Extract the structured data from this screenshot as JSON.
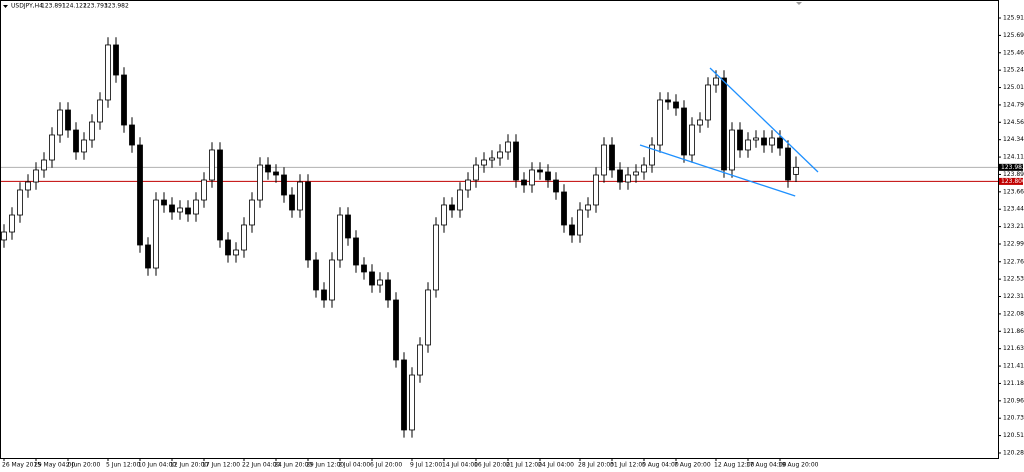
{
  "chart_data": {
    "type": "candlestick",
    "symbol": "USDJPY,H4",
    "open": [
      123.042,
      123.145,
      123.365,
      123.689,
      123.792,
      123.948,
      124.077,
      124.401,
      124.724,
      124.465,
      124.181,
      124.336,
      124.569,
      124.854,
      125.566,
      125.177,
      124.53,
      124.271,
      122.977,
      122.679,
      123.559,
      123.495,
      123.404,
      123.456,
      123.378,
      123.559,
      123.818,
      124.207,
      123.042,
      122.848,
      122.912,
      123.236,
      123.559,
      124.012,
      123.922,
      123.883,
      123.624,
      123.43,
      123.792,
      122.783,
      122.395,
      122.265,
      122.783,
      123.365,
      123.068,
      122.718,
      122.628,
      122.459,
      122.524,
      122.265,
      121.489,
      120.583,
      121.294,
      121.683,
      122.395,
      123.236,
      123.495,
      123.43,
      123.689,
      123.818,
      124.012,
      124.077,
      124.103,
      124.181,
      124.31,
      123.818,
      123.754,
      123.948,
      123.922,
      123.818,
      123.663,
      123.236,
      123.106,
      123.43,
      123.495,
      123.883,
      124.271,
      123.948,
      123.792,
      123.883,
      123.922,
      124.012,
      124.271,
      124.854,
      124.828,
      124.75,
      124.142,
      124.53,
      124.595,
      125.048,
      125.138,
      123.948,
      124.465,
      124.207,
      124.336,
      124.362,
      124.271,
      124.362,
      124.232,
      123.891
    ],
    "high": [
      123.245,
      123.465,
      123.789,
      123.892,
      124.048,
      124.177,
      124.501,
      124.824,
      124.824,
      124.565,
      124.436,
      124.669,
      124.954,
      125.666,
      125.666,
      125.277,
      124.63,
      124.371,
      123.077,
      123.659,
      123.659,
      123.595,
      123.556,
      123.556,
      123.659,
      123.918,
      124.307,
      124.307,
      123.142,
      123.012,
      123.336,
      123.659,
      124.112,
      124.112,
      124.022,
      123.983,
      123.724,
      123.892,
      123.892,
      122.883,
      122.495,
      122.883,
      123.465,
      123.465,
      123.168,
      122.818,
      122.728,
      122.624,
      122.624,
      122.365,
      121.589,
      121.394,
      121.783,
      122.495,
      123.336,
      123.595,
      123.595,
      123.789,
      123.918,
      124.112,
      124.177,
      124.203,
      124.281,
      124.41,
      124.41,
      123.918,
      124.048,
      124.048,
      124.022,
      123.918,
      123.763,
      123.336,
      123.53,
      123.595,
      123.983,
      124.371,
      124.371,
      124.048,
      123.983,
      124.022,
      124.112,
      124.371,
      124.954,
      124.954,
      124.928,
      124.85,
      124.63,
      124.695,
      125.148,
      125.238,
      125.238,
      124.565,
      124.565,
      124.436,
      124.462,
      124.462,
      124.462,
      124.462,
      124.332,
      124.122
    ],
    "low": [
      122.942,
      123.045,
      123.265,
      123.589,
      123.692,
      123.848,
      123.977,
      124.301,
      124.365,
      124.081,
      124.081,
      124.236,
      124.469,
      124.754,
      125.077,
      124.43,
      124.171,
      122.877,
      122.579,
      122.579,
      123.395,
      123.304,
      123.304,
      123.278,
      123.278,
      123.459,
      123.718,
      122.942,
      122.748,
      122.748,
      122.812,
      123.136,
      123.459,
      123.822,
      123.783,
      123.524,
      123.33,
      123.33,
      122.683,
      122.295,
      122.165,
      122.165,
      122.683,
      122.968,
      122.618,
      122.528,
      122.359,
      122.359,
      122.165,
      121.389,
      120.483,
      120.483,
      121.194,
      121.583,
      122.295,
      123.136,
      123.33,
      123.33,
      123.589,
      123.718,
      123.912,
      123.977,
      124.003,
      124.081,
      123.718,
      123.654,
      123.654,
      123.822,
      123.718,
      123.563,
      123.136,
      123.006,
      123.006,
      123.33,
      123.395,
      123.783,
      123.848,
      123.692,
      123.692,
      123.783,
      123.822,
      123.912,
      124.171,
      124.728,
      124.65,
      124.042,
      124.042,
      124.43,
      124.495,
      124.948,
      123.848,
      123.848,
      124.107,
      124.107,
      124.236,
      124.171,
      124.171,
      124.132,
      123.718,
      123.793
    ],
    "close": [
      123.145,
      123.365,
      123.689,
      123.792,
      123.948,
      124.077,
      124.401,
      124.724,
      124.465,
      124.181,
      124.336,
      124.569,
      124.854,
      125.566,
      125.177,
      124.53,
      124.271,
      122.977,
      122.679,
      123.559,
      123.495,
      123.404,
      123.456,
      123.378,
      123.559,
      123.818,
      124.207,
      123.042,
      122.848,
      122.912,
      123.236,
      123.559,
      124.012,
      123.922,
      123.883,
      123.624,
      123.43,
      123.792,
      122.783,
      122.395,
      122.265,
      122.783,
      123.365,
      123.068,
      122.718,
      122.628,
      122.459,
      122.524,
      122.265,
      121.489,
      120.583,
      121.294,
      121.683,
      122.395,
      123.236,
      123.495,
      123.43,
      123.689,
      123.818,
      124.012,
      124.077,
      124.103,
      124.181,
      124.31,
      123.818,
      123.754,
      123.948,
      123.922,
      123.818,
      123.663,
      123.236,
      123.106,
      123.43,
      123.495,
      123.883,
      124.271,
      123.948,
      123.792,
      123.883,
      123.922,
      124.012,
      124.271,
      124.854,
      124.828,
      124.75,
      124.142,
      124.53,
      124.595,
      125.048,
      125.138,
      123.948,
      124.465,
      124.207,
      124.336,
      124.362,
      124.271,
      124.362,
      124.232,
      123.818,
      123.982
    ],
    "ylim": [
      120.22,
      126.148
    ],
    "yticks": [
      125.915,
      {
        "value": 125.69,
        "label": "125.690"
      },
      125.465,
      {
        "value": 125.24,
        "label": "125.240"
      },
      125.015,
      {
        "value": 124.79,
        "label": "124.790"
      },
      124.565,
      {
        "value": 124.34,
        "label": "124.340"
      },
      124.115,
      {
        "value": 123.89,
        "label": "123.890"
      },
      123.665,
      {
        "value": 123.44,
        "label": "123.440"
      },
      123.215,
      {
        "value": 122.99,
        "label": "122.990"
      },
      {
        "value": 122.76,
        "label": "122.760"
      },
      122.535,
      {
        "value": 122.31,
        "label": "122.310"
      },
      122.085,
      {
        "value": 121.86,
        "label": "121.860"
      },
      121.635,
      {
        "value": 121.41,
        "label": "121.410"
      },
      121.185,
      {
        "value": 120.96,
        "label": "120.960"
      },
      120.735,
      {
        "value": 120.51,
        "label": "120.510"
      },
      120.285
    ],
    "xticks": [
      {
        "value": 0,
        "label": "26 May 2015"
      },
      {
        "value": 4,
        "label": "29 May 04:00"
      },
      {
        "value": 8,
        "label": "2 Jun 20:00"
      },
      {
        "value": 13,
        "label": "5 Jun 12:00"
      },
      {
        "value": 17,
        "label": "10 Jun 04:00"
      },
      {
        "value": 21,
        "label": "12 Jun 20:00"
      },
      {
        "value": 25,
        "label": "17 Jun 12:00"
      },
      {
        "value": 30,
        "label": "22 Jun 04:00"
      },
      {
        "value": 34,
        "label": "24 Jun 20:00"
      },
      {
        "value": 38,
        "label": "29 Jun 12:00"
      },
      {
        "value": 42,
        "label": "2 Jul 04:00"
      },
      {
        "value": 46,
        "label": "6 Jul 20:00"
      },
      {
        "value": 51,
        "label": "9 Jul 12:00"
      },
      {
        "value": 55,
        "label": "14 Jul 04:00"
      },
      {
        "value": 59,
        "label": "16 Jul 20:00"
      },
      {
        "value": 63,
        "label": "21 Jul 12:00"
      },
      {
        "value": 67,
        "label": "24 Jul 04:00"
      },
      {
        "value": 72,
        "label": "28 Jul 20:00"
      },
      {
        "value": 76,
        "label": "31 Jul 12:00"
      },
      {
        "value": 80,
        "label": "5 Aug 04:00"
      },
      {
        "value": 84,
        "label": "7 Aug 20:00"
      },
      {
        "value": 89,
        "label": "12 Aug 12:00"
      },
      {
        "value": 93,
        "label": "17 Aug 04:00"
      },
      {
        "value": 97,
        "label": "19 Aug 20:00"
      }
    ],
    "trendlines": [
      {
        "color": "#1e90ff",
        "x": [
          88.25,
          101.75
        ],
        "y": [
          125.268,
          123.922
        ]
      },
      {
        "color": "#1e90ff",
        "x": [
          79.5,
          98.9
        ],
        "y": [
          124.271,
          123.611
        ]
      }
    ],
    "level": {
      "value": 123.8,
      "label": "123.800",
      "color": "#c00000"
    },
    "bid_line_color": "#b0b0b0"
  }
}
